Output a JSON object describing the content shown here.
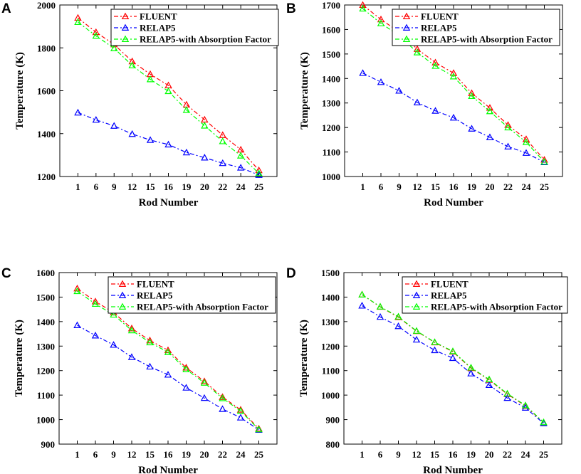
{
  "colors": {
    "FLUENT": "#ff0000",
    "RELAP5": "#0000ff",
    "RELAP5-with Absorption Factor": "#00ff00"
  },
  "chart_data": [
    {
      "type": "line",
      "panel": "A",
      "categories": [
        "1",
        "6",
        "9",
        "12",
        "15",
        "16",
        "19",
        "20",
        "22",
        "24",
        "25"
      ],
      "xlabel": "Rod Number",
      "ylabel": "Temperature (K)",
      "ylim": [
        1200,
        2000
      ],
      "yticks": [
        1200,
        1400,
        1600,
        1800,
        2000
      ],
      "legend_position": "top-right",
      "series": [
        {
          "name": "FLUENT",
          "values": [
            1940,
            1873,
            1816,
            1737,
            1677,
            1625,
            1535,
            1465,
            1393,
            1325,
            1229
          ]
        },
        {
          "name": "RELAP5",
          "values": [
            1498,
            1464,
            1436,
            1398,
            1370,
            1349,
            1312,
            1288,
            1262,
            1241,
            1207
          ]
        },
        {
          "name": "RELAP5-with Absorption Factor",
          "values": [
            1920,
            1856,
            1798,
            1718,
            1653,
            1598,
            1510,
            1437,
            1364,
            1297,
            1215
          ]
        }
      ]
    },
    {
      "type": "line",
      "panel": "B",
      "categories": [
        "1",
        "6",
        "9",
        "12",
        "15",
        "16",
        "19",
        "20",
        "22",
        "24",
        "25"
      ],
      "xlabel": "Rod Number",
      "ylabel": "Temperature (K)",
      "ylim": [
        1000,
        1700
      ],
      "yticks": [
        1000,
        1100,
        1200,
        1300,
        1400,
        1500,
        1600,
        1700
      ],
      "legend_position": "top-right",
      "series": [
        {
          "name": "FLUENT",
          "values": [
            1700,
            1641,
            1590,
            1520,
            1465,
            1422,
            1340,
            1280,
            1210,
            1152,
            1068
          ]
        },
        {
          "name": "RELAP5",
          "values": [
            1422,
            1385,
            1350,
            1302,
            1268,
            1240,
            1195,
            1160,
            1122,
            1096,
            1058
          ]
        },
        {
          "name": "RELAP5-with Absorption Factor",
          "values": [
            1685,
            1625,
            1576,
            1506,
            1451,
            1408,
            1328,
            1266,
            1200,
            1140,
            1060
          ]
        }
      ]
    },
    {
      "type": "line",
      "panel": "C",
      "categories": [
        "1",
        "6",
        "9",
        "12",
        "15",
        "16",
        "19",
        "20",
        "22",
        "24",
        "25"
      ],
      "xlabel": "Rod Number",
      "ylabel": "Temperature (K)",
      "ylim": [
        900,
        1600
      ],
      "yticks": [
        900,
        1000,
        1100,
        1200,
        1300,
        1400,
        1500,
        1600
      ],
      "legend_position": "top-right",
      "series": [
        {
          "name": "FLUENT",
          "values": [
            1535,
            1482,
            1437,
            1372,
            1323,
            1283,
            1212,
            1156,
            1092,
            1040,
            963
          ]
        },
        {
          "name": "RELAP5",
          "values": [
            1385,
            1343,
            1305,
            1255,
            1216,
            1183,
            1130,
            1088,
            1043,
            1008,
            958
          ]
        },
        {
          "name": "RELAP5-with Absorption Factor",
          "values": [
            1524,
            1472,
            1428,
            1364,
            1315,
            1275,
            1205,
            1150,
            1087,
            1035,
            960
          ]
        }
      ]
    },
    {
      "type": "line",
      "panel": "D",
      "categories": [
        "1",
        "6",
        "9",
        "12",
        "15",
        "16",
        "19",
        "20",
        "22",
        "24",
        "25"
      ],
      "xlabel": "Rod Number",
      "ylabel": "Temperature (K)",
      "ylim": [
        800,
        1500
      ],
      "yticks": [
        800,
        900,
        1000,
        1100,
        1200,
        1300,
        1400,
        1500
      ],
      "legend_position": "top-right",
      "series": [
        {
          "name": "FLUENT",
          "values": [
            1410,
            1360,
            1318,
            1261,
            1215,
            1177,
            1110,
            1062,
            1004,
            956,
            888
          ]
        },
        {
          "name": "RELAP5",
          "values": [
            1365,
            1319,
            1281,
            1226,
            1183,
            1151,
            1088,
            1041,
            988,
            948,
            885
          ]
        },
        {
          "name": "RELAP5-with Absorption Factor",
          "values": [
            1410,
            1361,
            1320,
            1262,
            1216,
            1179,
            1112,
            1064,
            1006,
            958,
            889
          ]
        }
      ]
    }
  ]
}
